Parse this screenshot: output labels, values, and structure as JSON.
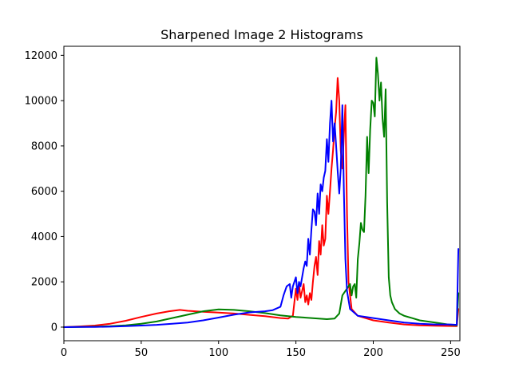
{
  "chart_data": {
    "type": "line",
    "title": "Sharpened Image 2 Histograms",
    "xlabel": "",
    "ylabel": "",
    "xlim": [
      0,
      256
    ],
    "ylim": [
      -600,
      12400
    ],
    "xticks": [
      0,
      50,
      100,
      150,
      200,
      250
    ],
    "yticks": [
      0,
      2000,
      4000,
      6000,
      8000,
      10000,
      12000
    ],
    "grid": false,
    "legend": "none",
    "series": [
      {
        "color": "#ff0000",
        "points": [
          [
            0,
            0
          ],
          [
            10,
            30
          ],
          [
            20,
            70
          ],
          [
            30,
            150
          ],
          [
            40,
            280
          ],
          [
            50,
            450
          ],
          [
            60,
            600
          ],
          [
            68,
            700
          ],
          [
            75,
            760
          ],
          [
            80,
            720
          ],
          [
            90,
            680
          ],
          [
            100,
            640
          ],
          [
            110,
            600
          ],
          [
            120,
            540
          ],
          [
            130,
            480
          ],
          [
            140,
            400
          ],
          [
            145,
            380
          ],
          [
            148,
            500
          ],
          [
            150,
            1700
          ],
          [
            151,
            1200
          ],
          [
            152,
            1900
          ],
          [
            153,
            1300
          ],
          [
            154,
            1600
          ],
          [
            155,
            1900
          ],
          [
            156,
            1100
          ],
          [
            157,
            1400
          ],
          [
            158,
            1000
          ],
          [
            159,
            1500
          ],
          [
            160,
            1200
          ],
          [
            161,
            2000
          ],
          [
            162,
            2700
          ],
          [
            163,
            3100
          ],
          [
            164,
            2300
          ],
          [
            165,
            3800
          ],
          [
            166,
            3200
          ],
          [
            167,
            4500
          ],
          [
            168,
            3600
          ],
          [
            169,
            3900
          ],
          [
            170,
            5800
          ],
          [
            171,
            5000
          ],
          [
            172,
            6000
          ],
          [
            173,
            7000
          ],
          [
            174,
            7800
          ],
          [
            175,
            8800
          ],
          [
            176,
            9500
          ],
          [
            177,
            11000
          ],
          [
            178,
            10000
          ],
          [
            179,
            7800
          ],
          [
            180,
            7000
          ],
          [
            181,
            8500
          ],
          [
            182,
            9800
          ],
          [
            183,
            5000
          ],
          [
            184,
            2000
          ],
          [
            186,
            800
          ],
          [
            190,
            500
          ],
          [
            200,
            300
          ],
          [
            210,
            200
          ],
          [
            220,
            120
          ],
          [
            230,
            80
          ],
          [
            240,
            60
          ],
          [
            250,
            50
          ],
          [
            254,
            40
          ],
          [
            255,
            800
          ]
        ]
      },
      {
        "color": "#008000",
        "points": [
          [
            0,
            0
          ],
          [
            10,
            10
          ],
          [
            20,
            20
          ],
          [
            30,
            40
          ],
          [
            40,
            80
          ],
          [
            50,
            150
          ],
          [
            60,
            250
          ],
          [
            70,
            400
          ],
          [
            80,
            550
          ],
          [
            90,
            700
          ],
          [
            100,
            780
          ],
          [
            110,
            760
          ],
          [
            120,
            700
          ],
          [
            130,
            620
          ],
          [
            140,
            520
          ],
          [
            150,
            450
          ],
          [
            160,
            400
          ],
          [
            170,
            350
          ],
          [
            175,
            380
          ],
          [
            178,
            600
          ],
          [
            180,
            1400
          ],
          [
            183,
            1700
          ],
          [
            185,
            1900
          ],
          [
            186,
            1400
          ],
          [
            187,
            1800
          ],
          [
            188,
            1900
          ],
          [
            189,
            1300
          ],
          [
            190,
            3000
          ],
          [
            191,
            3700
          ],
          [
            192,
            4600
          ],
          [
            193,
            4300
          ],
          [
            194,
            4200
          ],
          [
            195,
            5800
          ],
          [
            196,
            8400
          ],
          [
            197,
            6800
          ],
          [
            198,
            8700
          ],
          [
            199,
            10000
          ],
          [
            200,
            9900
          ],
          [
            201,
            9300
          ],
          [
            202,
            11900
          ],
          [
            203,
            11200
          ],
          [
            204,
            10000
          ],
          [
            205,
            10800
          ],
          [
            206,
            9200
          ],
          [
            207,
            8400
          ],
          [
            208,
            10500
          ],
          [
            209,
            5500
          ],
          [
            210,
            2200
          ],
          [
            211,
            1400
          ],
          [
            212,
            1100
          ],
          [
            214,
            800
          ],
          [
            217,
            600
          ],
          [
            220,
            500
          ],
          [
            225,
            400
          ],
          [
            230,
            300
          ],
          [
            240,
            200
          ],
          [
            250,
            100
          ],
          [
            254,
            80
          ],
          [
            255,
            1500
          ]
        ]
      },
      {
        "color": "#0000ff",
        "points": [
          [
            0,
            0
          ],
          [
            10,
            5
          ],
          [
            20,
            10
          ],
          [
            30,
            20
          ],
          [
            40,
            40
          ],
          [
            50,
            70
          ],
          [
            60,
            100
          ],
          [
            70,
            150
          ],
          [
            80,
            200
          ],
          [
            90,
            300
          ],
          [
            100,
            420
          ],
          [
            110,
            550
          ],
          [
            120,
            650
          ],
          [
            130,
            700
          ],
          [
            135,
            750
          ],
          [
            140,
            900
          ],
          [
            142,
            1400
          ],
          [
            144,
            1800
          ],
          [
            146,
            1900
          ],
          [
            147,
            1300
          ],
          [
            148,
            1800
          ],
          [
            150,
            2200
          ],
          [
            151,
            1500
          ],
          [
            152,
            2000
          ],
          [
            153,
            1800
          ],
          [
            155,
            2600
          ],
          [
            156,
            2900
          ],
          [
            157,
            2700
          ],
          [
            158,
            3900
          ],
          [
            159,
            3200
          ],
          [
            160,
            4300
          ],
          [
            161,
            5200
          ],
          [
            162,
            5100
          ],
          [
            163,
            4500
          ],
          [
            164,
            5900
          ],
          [
            165,
            5000
          ],
          [
            166,
            6300
          ],
          [
            167,
            6000
          ],
          [
            168,
            6600
          ],
          [
            169,
            6900
          ],
          [
            170,
            8300
          ],
          [
            171,
            7300
          ],
          [
            172,
            9000
          ],
          [
            173,
            10000
          ],
          [
            174,
            8200
          ],
          [
            175,
            9000
          ],
          [
            176,
            8000
          ],
          [
            177,
            6900
          ],
          [
            178,
            5900
          ],
          [
            179,
            7000
          ],
          [
            180,
            9800
          ],
          [
            181,
            6000
          ],
          [
            182,
            3000
          ],
          [
            183,
            1600
          ],
          [
            185,
            800
          ],
          [
            190,
            500
          ],
          [
            200,
            400
          ],
          [
            210,
            300
          ],
          [
            220,
            200
          ],
          [
            230,
            150
          ],
          [
            240,
            120
          ],
          [
            250,
            120
          ],
          [
            254,
            100
          ],
          [
            255,
            3450
          ]
        ]
      }
    ]
  }
}
